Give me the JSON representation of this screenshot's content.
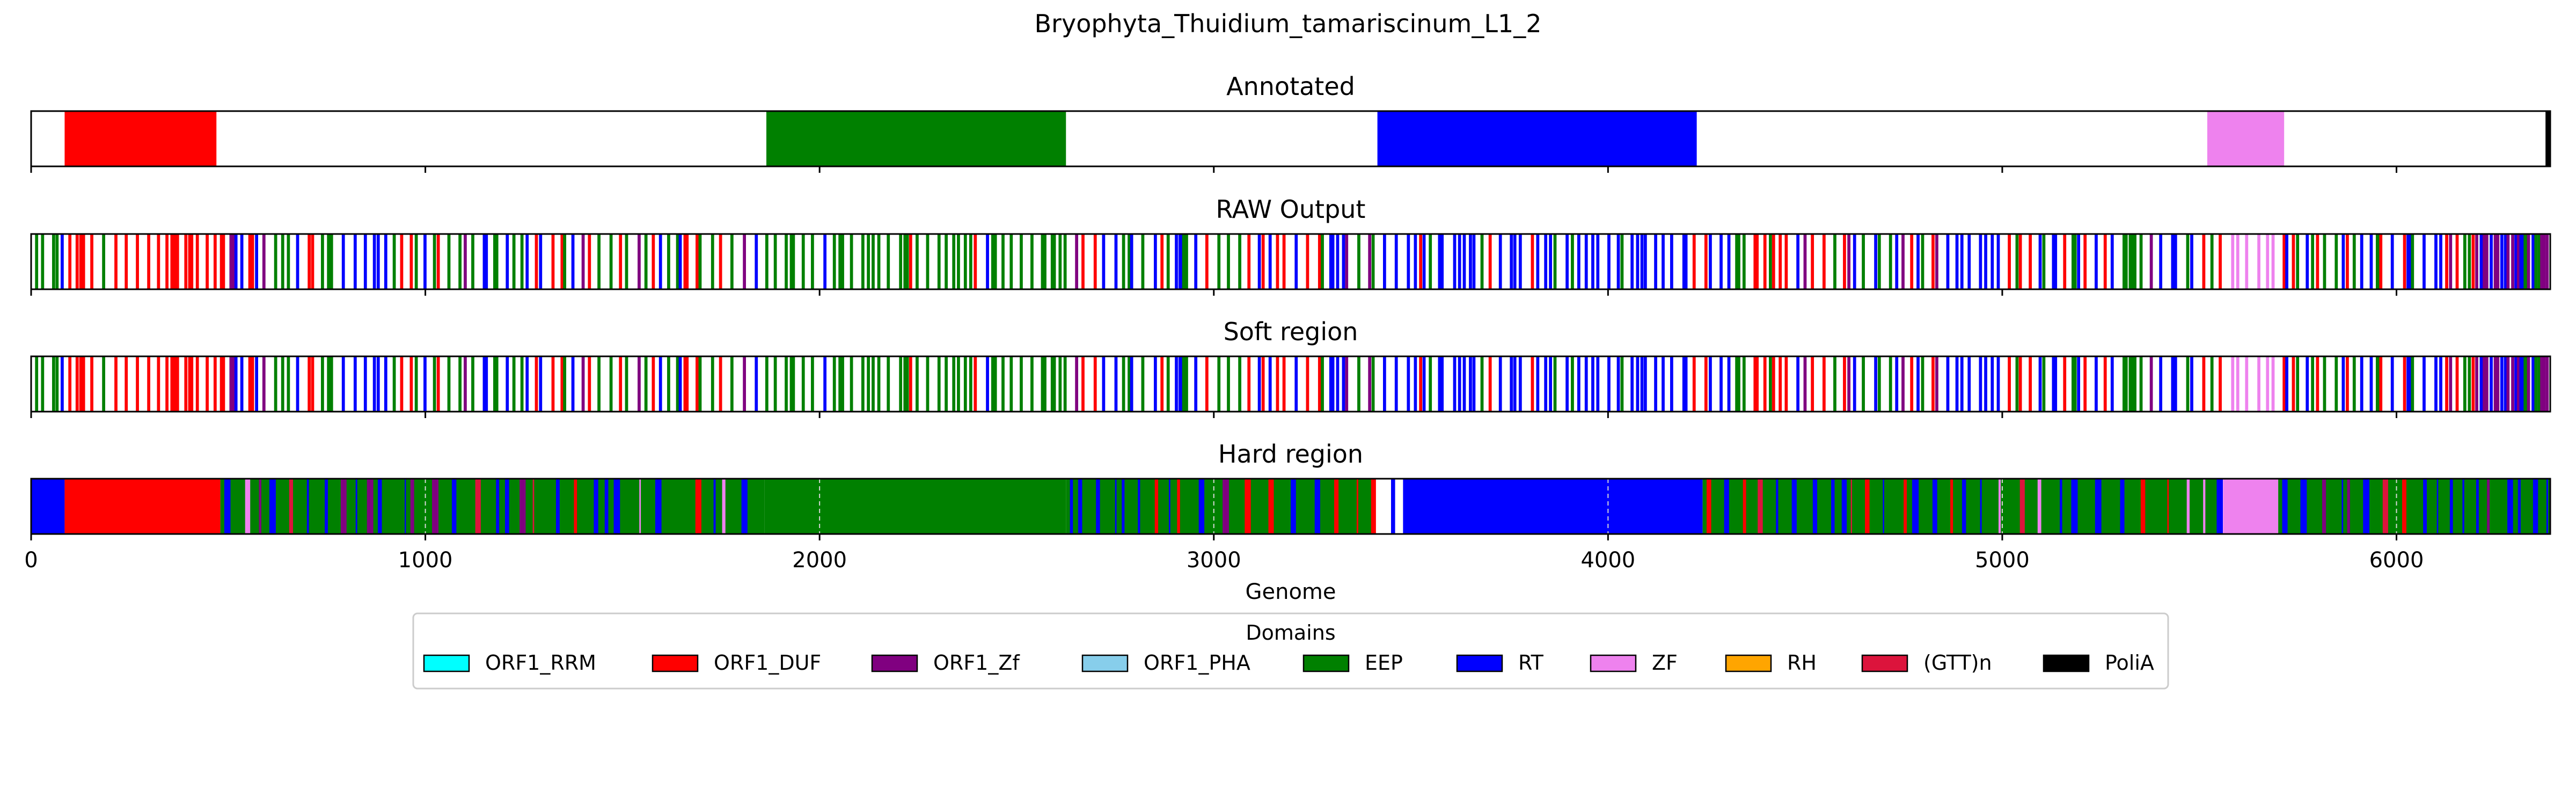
{
  "chart_data": {
    "type": "bar",
    "title": "Bryophyta_Thuidium_tamariscinum_L1_2",
    "xlabel": "Genome",
    "xlim": [
      0,
      6390
    ],
    "x_ticks": [
      0,
      1000,
      2000,
      3000,
      4000,
      5000,
      6000
    ],
    "colors": {
      "ORF1_RRM": "#00ffff",
      "ORF1_DUF": "#ff0000",
      "ORF1_Zf": "#800080",
      "ORF1_PHA": "#87ceeb",
      "EEP": "#008000",
      "RT": "#0000ff",
      "ZF": "#ee82ee",
      "RH": "#ffa500",
      "(GTT)n": "#dc143c",
      "PoliA": "#000000"
    },
    "legend": {
      "title": "Domains",
      "placement": "bottom-center",
      "entries": [
        "ORF1_RRM",
        "ORF1_DUF",
        "ORF1_Zf",
        "ORF1_PHA",
        "EEP",
        "RT",
        "ZF",
        "RH",
        "(GTT)n",
        "PoliA"
      ]
    },
    "panels": [
      {
        "title": "Annotated",
        "segments": [
          {
            "start": 85,
            "end": 470,
            "domain": "ORF1_DUF"
          },
          {
            "start": 1865,
            "end": 2625,
            "domain": "EEP"
          },
          {
            "start": 3415,
            "end": 4225,
            "domain": "RT"
          },
          {
            "start": 5520,
            "end": 5715,
            "domain": "ZF"
          },
          {
            "start": 6378,
            "end": 6390,
            "domain": "PoliA"
          }
        ]
      },
      {
        "title": "RAW Output",
        "region": "mixed",
        "seed": 11
      },
      {
        "title": "Soft region",
        "region": "mixed",
        "seed": 11
      },
      {
        "title": "Hard region",
        "segments": [
          {
            "start": 0,
            "end": 85,
            "domain": "RT"
          },
          {
            "start": 85,
            "end": 480,
            "domain": "ORF1_DUF"
          },
          {
            "start": 480,
            "end": 1860,
            "domain": "EEP"
          },
          {
            "start": 1860,
            "end": 2625,
            "domain": "EEP"
          },
          {
            "start": 2625,
            "end": 3400,
            "domain": "EEP"
          },
          {
            "start": 3480,
            "end": 4240,
            "domain": "RT"
          },
          {
            "start": 4240,
            "end": 5550,
            "domain": "EEP"
          },
          {
            "start": 5560,
            "end": 5700,
            "domain": "ZF"
          },
          {
            "start": 5700,
            "end": 6390,
            "domain": "EEP"
          }
        ],
        "overlay_ranges": [
          {
            "start": 480,
            "end": 1860
          },
          {
            "start": 2625,
            "end": 3480
          },
          {
            "start": 4240,
            "end": 5560
          },
          {
            "start": 5700,
            "end": 6390
          }
        ]
      }
    ]
  }
}
